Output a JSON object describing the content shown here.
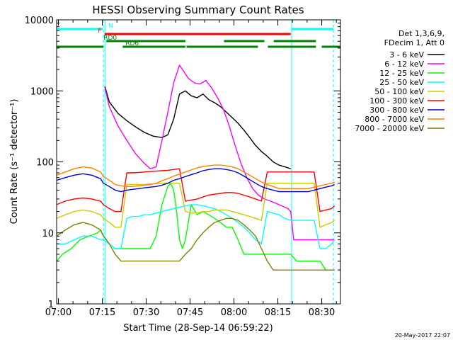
{
  "chart_data": {
    "type": "line",
    "title": "HESSI Observing Summary Count Rates",
    "xlabel": "Start Time (28-Sep-14 06:59:22)",
    "ylabel": "Count Rate (s⁻¹ detector⁻¹)",
    "y_scale": "log",
    "ylim": [
      1,
      10000
    ],
    "xlim_minutes": [
      0,
      97
    ],
    "x_ticks": [
      {
        "t": 0.6,
        "label": "07:00"
      },
      {
        "t": 15.6,
        "label": "07:15"
      },
      {
        "t": 30.6,
        "label": "07:30"
      },
      {
        "t": 45.6,
        "label": "07:45"
      },
      {
        "t": 60.6,
        "label": "08:00"
      },
      {
        "t": 75.6,
        "label": "08:15"
      },
      {
        "t": 90.6,
        "label": "08:30"
      }
    ],
    "y_ticks": [
      {
        "v": 1,
        "label": "1"
      },
      {
        "v": 10,
        "label": "10"
      },
      {
        "v": 100,
        "label": "100"
      },
      {
        "v": 1000,
        "label": "1000"
      },
      {
        "v": 10000,
        "label": "10000"
      }
    ],
    "legend": {
      "header": [
        "Det 1,3,6,9,",
        "FDecim 1, Att 0"
      ],
      "placement": "right"
    },
    "series": [
      {
        "name": "3 - 6 keV",
        "color": "#000000",
        "x": [
          16.5,
          18,
          21,
          24,
          27,
          30,
          33,
          36,
          38,
          40,
          42,
          44,
          46,
          48,
          50,
          52,
          54,
          56,
          58,
          60,
          62,
          64,
          66,
          68,
          70,
          72,
          74,
          76,
          78,
          80
        ],
        "values": [
          1150,
          700,
          480,
          380,
          310,
          260,
          230,
          220,
          240,
          400,
          900,
          1000,
          850,
          800,
          900,
          750,
          680,
          600,
          500,
          420,
          350,
          280,
          220,
          170,
          140,
          120,
          100,
          90,
          85,
          80
        ]
      },
      {
        "name": "6 - 12 keV",
        "color": "#ff00ff",
        "x": [
          16.5,
          18,
          21,
          24,
          27,
          30,
          32,
          34,
          36,
          38,
          40,
          42,
          43,
          45,
          47,
          49,
          51,
          53,
          55,
          57,
          59,
          61,
          63,
          65,
          67,
          69,
          71,
          73,
          75,
          77,
          79,
          80,
          81,
          83,
          85,
          87,
          89,
          91,
          93,
          95
        ],
        "values": [
          1100,
          600,
          320,
          200,
          130,
          95,
          80,
          85,
          200,
          500,
          1300,
          2300,
          2000,
          1500,
          1300,
          1250,
          1400,
          1100,
          800,
          550,
          320,
          170,
          95,
          60,
          42,
          34,
          30,
          28,
          26,
          24,
          22,
          20,
          8,
          8,
          8,
          8,
          8,
          8,
          8,
          8
        ]
      },
      {
        "name": "12 - 25 keV",
        "color": "#00ff00",
        "x": [
          0,
          2,
          5,
          8,
          11,
          14,
          15,
          16,
          17,
          18,
          20,
          22,
          24,
          26,
          28,
          30,
          32,
          34,
          36,
          38,
          39,
          40,
          41,
          42,
          43,
          44,
          45,
          46,
          48,
          50,
          52,
          54,
          56,
          58,
          60,
          62,
          64,
          66,
          68,
          70,
          72,
          74,
          76,
          78,
          80,
          82,
          84,
          86,
          88,
          90,
          92,
          94,
          95
        ],
        "values": [
          4,
          5,
          6,
          8,
          9,
          10,
          11,
          9,
          8,
          7,
          6,
          6,
          6,
          6,
          6,
          6,
          6,
          9,
          25,
          45,
          50,
          40,
          20,
          8,
          6,
          8,
          14,
          25,
          18,
          20,
          18,
          16,
          14,
          12,
          12,
          8,
          5,
          5,
          5,
          5,
          5,
          5,
          5,
          5,
          5,
          4,
          4,
          4,
          4,
          4,
          3,
          3,
          3
        ]
      },
      {
        "name": "25 - 50 keV",
        "color": "#00ffff",
        "x": [
          0,
          3,
          6,
          9,
          12,
          15,
          16,
          18,
          20,
          22,
          24,
          26,
          28,
          30,
          32,
          34,
          36,
          38,
          40,
          42,
          44,
          46,
          48,
          50,
          52,
          54,
          56,
          58,
          60,
          62,
          64,
          66,
          68,
          70,
          72,
          74,
          76,
          78,
          80,
          82,
          84,
          86,
          88,
          90,
          92,
          94,
          95
        ],
        "values": [
          7,
          7,
          8,
          9,
          9,
          8,
          8,
          7,
          6,
          6,
          16,
          17,
          17,
          18,
          18,
          19,
          20,
          21,
          22,
          23,
          24,
          25,
          25,
          24,
          23,
          22,
          20,
          18,
          16,
          14,
          12,
          10,
          8,
          7,
          20,
          19,
          18,
          16,
          15,
          15,
          15,
          15,
          15,
          6,
          6,
          7,
          8
        ]
      },
      {
        "name": "50 - 100 keV",
        "color": "#cccc00",
        "x": [
          0,
          3,
          6,
          9,
          12,
          15,
          16,
          18,
          20,
          22,
          24,
          26,
          28,
          30,
          32,
          34,
          36,
          38,
          40,
          42,
          44,
          46,
          48,
          50,
          52,
          54,
          56,
          58,
          60,
          62,
          64,
          66,
          68,
          70,
          72,
          74,
          76,
          78,
          80,
          82,
          84,
          86,
          88,
          90,
          92,
          94,
          95
        ],
        "values": [
          16,
          18,
          20,
          21,
          20,
          18,
          16,
          14,
          12,
          12,
          48,
          48,
          48,
          48,
          49,
          49,
          50,
          50,
          50,
          50,
          20,
          19,
          19,
          20,
          20,
          21,
          21,
          21,
          20,
          19,
          18,
          17,
          16,
          15,
          50,
          50,
          50,
          50,
          50,
          50,
          50,
          50,
          50,
          12,
          13,
          14,
          15
        ]
      },
      {
        "name": "100 - 300 keV",
        "color": "#ff0000",
        "x": [
          0,
          3,
          6,
          9,
          12,
          15,
          16,
          18,
          20,
          22,
          24,
          26,
          28,
          30,
          32,
          34,
          36,
          38,
          40,
          42,
          44,
          46,
          48,
          50,
          52,
          54,
          56,
          58,
          60,
          62,
          64,
          66,
          68,
          70,
          72,
          74,
          76,
          78,
          80,
          82,
          84,
          86,
          88,
          90,
          92,
          94,
          95
        ],
        "values": [
          25,
          28,
          30,
          31,
          30,
          28,
          25,
          22,
          20,
          20,
          70,
          70,
          71,
          72,
          73,
          74,
          75,
          76,
          78,
          80,
          28,
          29,
          30,
          32,
          34,
          35,
          36,
          37,
          37,
          36,
          34,
          32,
          30,
          28,
          72,
          72,
          72,
          72,
          72,
          72,
          72,
          72,
          72,
          20,
          21,
          22,
          24
        ]
      },
      {
        "name": "300 - 800 keV",
        "color": "#0000cc",
        "x": [
          0,
          3,
          6,
          9,
          12,
          15,
          16,
          18,
          20,
          22,
          24,
          26,
          28,
          30,
          32,
          34,
          36,
          38,
          40,
          42,
          44,
          46,
          48,
          50,
          52,
          54,
          56,
          58,
          60,
          62,
          64,
          66,
          68,
          70,
          72,
          74,
          76,
          78,
          80,
          82,
          84,
          86,
          88,
          90,
          92,
          94,
          95
        ],
        "values": [
          55,
          60,
          65,
          68,
          65,
          58,
          50,
          45,
          40,
          38,
          40,
          41,
          42,
          43,
          44,
          45,
          47,
          50,
          55,
          58,
          62,
          66,
          70,
          75,
          78,
          80,
          80,
          78,
          75,
          70,
          63,
          56,
          50,
          45,
          42,
          40,
          38,
          38,
          38,
          38,
          38,
          38,
          40,
          42,
          44,
          46,
          48
        ]
      },
      {
        "name": "800 - 7000 keV",
        "color": "#ff8000",
        "x": [
          0,
          3,
          6,
          9,
          12,
          15,
          16,
          18,
          20,
          22,
          24,
          26,
          28,
          30,
          32,
          34,
          36,
          38,
          40,
          42,
          44,
          46,
          48,
          50,
          52,
          54,
          56,
          58,
          60,
          62,
          64,
          66,
          68,
          70,
          72,
          74,
          76,
          78,
          80,
          82,
          84,
          86,
          88,
          90,
          92,
          94,
          95
        ],
        "values": [
          65,
          72,
          80,
          85,
          82,
          72,
          62,
          55,
          48,
          46,
          45,
          45,
          46,
          47,
          48,
          50,
          54,
          58,
          63,
          67,
          72,
          77,
          82,
          86,
          88,
          90,
          90,
          88,
          85,
          80,
          72,
          65,
          58,
          52,
          48,
          45,
          42,
          42,
          42,
          42,
          42,
          42,
          44,
          46,
          48,
          50,
          52
        ]
      },
      {
        "name": "7000 - 20000 keV",
        "color": "#808000",
        "x": [
          0,
          3,
          6,
          9,
          12,
          15,
          16,
          18,
          20,
          22,
          24,
          26,
          28,
          30,
          32,
          34,
          36,
          38,
          40,
          42,
          44,
          46,
          48,
          50,
          52,
          54,
          56,
          58,
          60,
          62,
          64,
          66,
          68,
          70,
          72,
          74,
          76,
          78,
          80,
          82,
          84,
          86,
          88,
          90,
          92,
          94,
          95
        ],
        "values": [
          9,
          11,
          13,
          14,
          13,
          11,
          9,
          7,
          5,
          4,
          4,
          4,
          4,
          4,
          4,
          4,
          4,
          4,
          4,
          4,
          5,
          6,
          8,
          10,
          12,
          14,
          15,
          16,
          16,
          15,
          13,
          11,
          9,
          6,
          4,
          3,
          3,
          3,
          3,
          3,
          3,
          3,
          3,
          3,
          3,
          3,
          3
        ]
      }
    ],
    "state_bars": [
      {
        "label": "N",
        "color": "#00ffff",
        "segments": [
          [
            0,
            15.8
          ],
          [
            80.3,
            94.6
          ]
        ]
      },
      {
        "label": "F",
        "color": "#ff0000",
        "segments": [
          [
            16.4,
            80.0
          ]
        ]
      },
      {
        "label": "RD0",
        "color": "#008000",
        "segments": [
          [
            17.0,
            44.0
          ],
          [
            57.2,
            71.0
          ],
          [
            74.2,
            88.6
          ]
        ]
      },
      {
        "label": "RD6",
        "color": "#008000",
        "segments": [
          [
            0,
            16.0
          ],
          [
            22.6,
            44.0
          ],
          [
            44.4,
            68.8
          ],
          [
            72.2,
            88.6
          ],
          [
            90.6,
            97
          ]
        ]
      }
    ],
    "vertical_lines": [
      {
        "kind": "solid",
        "color": "#00ffff",
        "t": [
          0,
          16.5,
          80.3
        ]
      },
      {
        "kind": "dashed",
        "color": "#00ffff",
        "t": [
          16.0,
          94.6
        ]
      }
    ]
  },
  "timestamp": "20-May-2017 22:07"
}
